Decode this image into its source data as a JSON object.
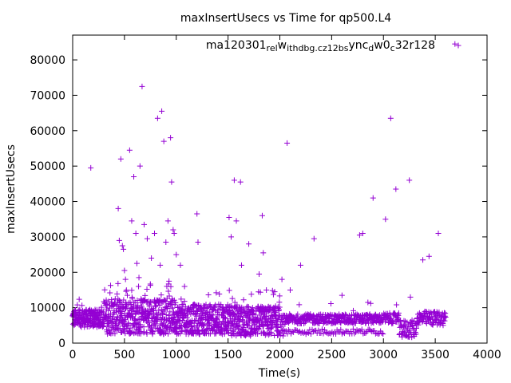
{
  "chart_data": {
    "type": "scatter",
    "title": "maxInsertUsecs vs Time for qp500.L4",
    "xlabel": "Time(s)",
    "ylabel": "maxInsertUsecs",
    "xlim": [
      0,
      4000
    ],
    "ylim": [
      0,
      87000
    ],
    "xticks": [
      0,
      500,
      1000,
      1500,
      2000,
      2500,
      3000,
      3500,
      4000
    ],
    "yticks": [
      0,
      10000,
      20000,
      30000,
      40000,
      50000,
      60000,
      70000,
      80000
    ],
    "grid": false,
    "legend_position": "top-right",
    "marker_color": "#9400d3",
    "series": [
      {
        "name": "ma120301_rel_withdbg.cz12b_sync_dw0_c32r128",
        "legend_parts": [
          {
            "text": "ma120301",
            "sub": false
          },
          {
            "text": "rel",
            "sub": true
          },
          {
            "text": "w",
            "sub": false
          },
          {
            "text": "ithdbg.cz12b",
            "sub": true
          },
          {
            "text": "s",
            "sub": true
          },
          {
            "text": "ync",
            "sub": false
          },
          {
            "text": "d",
            "sub": true
          },
          {
            "text": "w0",
            "sub": false
          },
          {
            "text": "c",
            "sub": true
          },
          {
            "text": "32r128",
            "sub": false
          }
        ],
        "outliers": [
          [
            175,
            49500
          ],
          [
            440,
            38000
          ],
          [
            450,
            29000
          ],
          [
            465,
            52000
          ],
          [
            480,
            27500
          ],
          [
            490,
            26500
          ],
          [
            500,
            20500
          ],
          [
            510,
            18000
          ],
          [
            550,
            54500
          ],
          [
            570,
            34500
          ],
          [
            590,
            47000
          ],
          [
            610,
            31000
          ],
          [
            620,
            22500
          ],
          [
            640,
            18500
          ],
          [
            650,
            50000
          ],
          [
            670,
            72500
          ],
          [
            690,
            33500
          ],
          [
            720,
            29500
          ],
          [
            760,
            24000
          ],
          [
            790,
            31000
          ],
          [
            820,
            63500
          ],
          [
            845,
            22000
          ],
          [
            860,
            65500
          ],
          [
            880,
            57000
          ],
          [
            900,
            28500
          ],
          [
            920,
            34500
          ],
          [
            930,
            17500
          ],
          [
            945,
            58000
          ],
          [
            955,
            45500
          ],
          [
            970,
            32000
          ],
          [
            980,
            31000
          ],
          [
            1000,
            25000
          ],
          [
            1040,
            22000
          ],
          [
            1080,
            16000
          ],
          [
            1200,
            36500
          ],
          [
            1210,
            28500
          ],
          [
            1510,
            35500
          ],
          [
            1530,
            30000
          ],
          [
            1560,
            46000
          ],
          [
            1580,
            34500
          ],
          [
            1620,
            45500
          ],
          [
            1630,
            22000
          ],
          [
            1700,
            28000
          ],
          [
            1800,
            19500
          ],
          [
            1830,
            36000
          ],
          [
            1840,
            25500
          ],
          [
            1870,
            15000
          ],
          [
            1950,
            14500
          ],
          [
            2020,
            18000
          ],
          [
            2070,
            56500
          ],
          [
            2100,
            15000
          ],
          [
            2200,
            22000
          ],
          [
            2330,
            29500
          ],
          [
            2600,
            13500
          ],
          [
            2770,
            30500
          ],
          [
            2800,
            31000
          ],
          [
            2850,
            11500
          ],
          [
            2900,
            41000
          ],
          [
            3020,
            35000
          ],
          [
            3070,
            63500
          ],
          [
            3120,
            43500
          ],
          [
            3250,
            46000
          ],
          [
            3260,
            13000
          ],
          [
            3380,
            23500
          ],
          [
            3440,
            24500
          ],
          [
            3530,
            31000
          ],
          [
            3690,
            84500
          ]
        ]
      }
    ]
  }
}
